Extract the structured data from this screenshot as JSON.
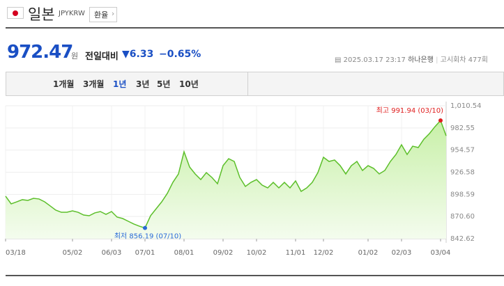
{
  "header": {
    "title": "일본",
    "code": "JPYKRW",
    "button": "환율"
  },
  "quote": {
    "price": "972.47",
    "unit": "원",
    "change_label": "전일대비",
    "change": "6.33",
    "change_percent": "−0.65%",
    "datetime": "2025.03.17 23:17",
    "bank": "하나은행",
    "round": "고시회차 477회"
  },
  "tabs": {
    "items": [
      "1개월",
      "3개월",
      "1년",
      "3년",
      "5년",
      "10년"
    ],
    "selected": 2
  },
  "chart_data": {
    "type": "area",
    "color": "#5cbf2a",
    "max_color": "#e02020",
    "min_color": "#2a6ad8",
    "max_label": "최고 991.94 (03/10)",
    "min_label": "최저 856.19 (07/10)",
    "categories": [
      "03/18",
      null,
      null,
      null,
      null,
      null,
      null,
      null,
      null,
      null,
      null,
      null,
      "05/02",
      null,
      null,
      null,
      null,
      null,
      null,
      "06/03",
      null,
      null,
      null,
      null,
      null,
      "07/01",
      null,
      null,
      null,
      null,
      null,
      null,
      "08/01",
      null,
      null,
      null,
      null,
      null,
      null,
      "09/02",
      null,
      null,
      null,
      null,
      null,
      "10/02",
      null,
      null,
      null,
      null,
      null,
      null,
      "11/01",
      null,
      null,
      null,
      null,
      "12/02",
      null,
      null,
      null,
      null,
      null,
      null,
      null,
      "01/02",
      null,
      null,
      null,
      null,
      null,
      "02/03",
      null,
      null,
      null,
      null,
      null,
      null,
      "03/04",
      null
    ],
    "values": [
      896.3,
      886.6,
      889.2,
      891.9,
      891.0,
      893.6,
      892.8,
      889.2,
      884.0,
      878.7,
      876.0,
      876.0,
      877.8,
      876.0,
      872.5,
      871.6,
      875.2,
      876.9,
      873.4,
      876.9,
      869.9,
      868.1,
      864.6,
      861.1,
      858.4,
      856.19,
      871.6,
      880.4,
      889.2,
      899.8,
      913.8,
      924.4,
      952.5,
      933.2,
      924.4,
      917.3,
      926.1,
      920.0,
      912.1,
      934.9,
      943.7,
      940.2,
      920.0,
      908.6,
      913.8,
      917.3,
      910.3,
      906.8,
      913.8,
      906.8,
      913.8,
      906.8,
      915.6,
      902.4,
      906.8,
      913.8,
      926.1,
      945.5,
      940.2,
      942.0,
      934.9,
      924.4,
      934.9,
      940.2,
      928.8,
      934.9,
      931.4,
      924.4,
      928.8,
      940.2,
      949.0,
      961.3,
      949.0,
      959.5,
      957.8,
      968.3,
      975.4,
      984.2,
      991.94,
      972.47
    ],
    "ylim": [
      842.62,
      1010.54
    ],
    "yticks": [
      842.62,
      {
        "value": 870.6,
        "label": "870.60"
      },
      898.59,
      926.58,
      954.57,
      982.55,
      {
        "value": 1010.54,
        "label": "1,010.54"
      }
    ],
    "grid": true
  }
}
